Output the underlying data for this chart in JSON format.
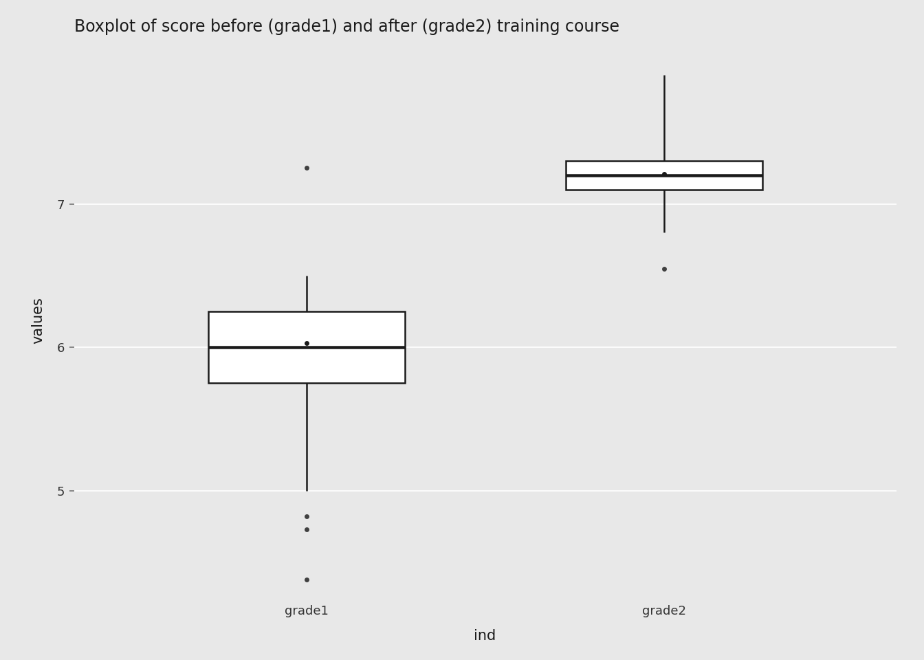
{
  "title": "Boxplot of score before (grade1) and after (grade2) training course",
  "xlabel": "ind",
  "ylabel": "values",
  "categories": [
    "grade1",
    "grade2"
  ],
  "background_color": "#E8E8E8",
  "panel_background": "#E8E8E8",
  "grid_color": "#FFFFFF",
  "box_color": "#FFFFFF",
  "box_edge_color": "#1A1A1A",
  "whisker_color": "#1A1A1A",
  "outlier_color": "#404040",
  "mean_color": "#1A1A1A",
  "grade1": {
    "q1": 5.75,
    "median": 6.0,
    "q3": 6.25,
    "mean": 6.03,
    "whisker_low": 5.0,
    "whisker_high": 6.5,
    "outliers_low": [
      4.82,
      4.73,
      4.38
    ],
    "outliers_high": [
      7.25
    ]
  },
  "grade2": {
    "q1": 7.1,
    "median": 7.2,
    "q3": 7.3,
    "mean": 7.21,
    "whisker_low": 6.8,
    "whisker_high": 7.9,
    "outliers_low": [
      6.55
    ],
    "outliers_high": []
  },
  "ylim": [
    4.28,
    8.1
  ],
  "yticks": [
    5,
    6,
    7
  ],
  "title_fontsize": 17,
  "axis_label_fontsize": 15,
  "tick_fontsize": 13,
  "box_width": 0.55,
  "linewidth": 1.8,
  "outlier_size": 5,
  "mean_size": 5
}
